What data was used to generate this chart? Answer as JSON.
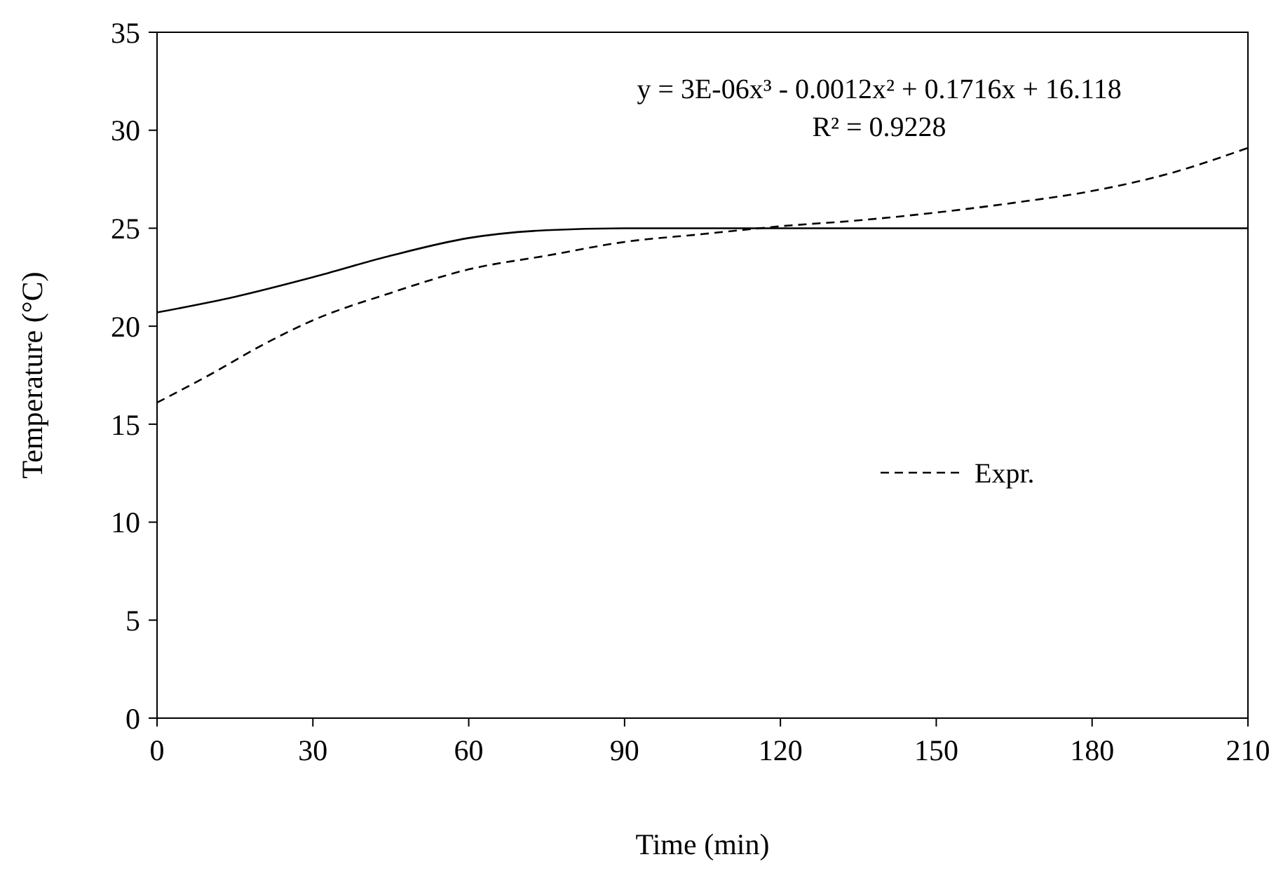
{
  "chart_data": {
    "type": "line",
    "xlabel": "Time (min)",
    "ylabel": "Temperature (°C)",
    "xlim": [
      0,
      210
    ],
    "xticks": [
      0,
      30,
      60,
      90,
      120,
      150,
      180,
      210
    ],
    "ylim": [
      0,
      35
    ],
    "yticks": [
      0,
      5,
      10,
      15,
      20,
      25,
      30,
      35
    ],
    "grid": false,
    "legend": "right",
    "annotations": [
      "y = 3E-06x³ - 0.0012x² + 0.1716x + 16.118",
      "R² = 0.9228"
    ],
    "series": [
      {
        "color": "#000000",
        "line_style": "solid",
        "x": [
          0,
          15,
          30,
          45,
          60,
          75,
          90,
          120,
          150,
          180,
          210
        ],
        "values": [
          20.7,
          21.5,
          22.5,
          23.6,
          24.5,
          24.9,
          25,
          25,
          25,
          25,
          25
        ]
      },
      {
        "name": "Expr.",
        "color": "#000000",
        "line_style": "dashed",
        "x": [
          0,
          10,
          20,
          30,
          45,
          60,
          75,
          90,
          105,
          120,
          135,
          150,
          165,
          180,
          195,
          210
        ],
        "values": [
          16.1,
          17.5,
          19,
          20.3,
          21.7,
          22.9,
          23.6,
          24.3,
          24.7,
          25.1,
          25.4,
          25.8,
          26.3,
          26.9,
          27.8,
          29.1
        ]
      }
    ]
  }
}
